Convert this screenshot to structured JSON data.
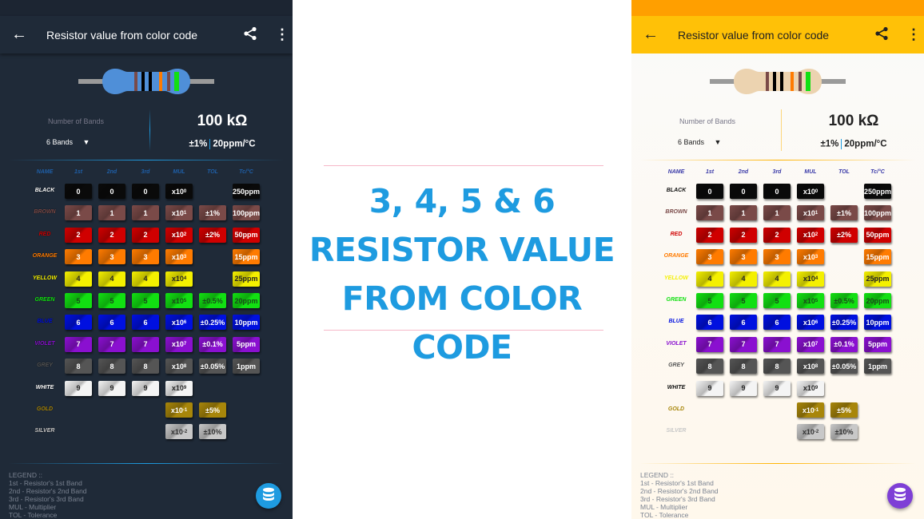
{
  "app": {
    "title": "Resistor value from color code",
    "bands_label": "Number of Bands",
    "bands_value": "6 Bands",
    "resistance": "100 kΩ",
    "tolerance": "±1%",
    "tempco": "20ppm/°C",
    "icons": {
      "back": "arrow-left-icon",
      "share": "share-icon",
      "more": "more-vert-icon",
      "fab": "database-icon"
    }
  },
  "headers": [
    "NAME",
    "1st",
    "2nd",
    "3rd",
    "MUL",
    "TOL",
    "Tc/°C"
  ],
  "rows": [
    {
      "name": "BLACK",
      "color": "#0a0a0a",
      "fg": "#fff",
      "d": "0",
      "mul": [
        "x10",
        "0"
      ],
      "tol": "",
      "tc": "250ppm"
    },
    {
      "name": "BROWN",
      "color": "#7a4a48",
      "fg": "#fff",
      "d": "1",
      "mul": [
        "x10",
        "1"
      ],
      "tol": "±1%",
      "tc": "100ppm"
    },
    {
      "name": "RED",
      "color": "#d00000",
      "fg": "#fff",
      "d": "2",
      "mul": [
        "x10",
        "2"
      ],
      "tol": "±2%",
      "tc": "50ppm"
    },
    {
      "name": "ORANGE",
      "color": "#ff7b00",
      "fg": "#fff",
      "d": "3",
      "mul": [
        "x10",
        "3"
      ],
      "tol": "",
      "tc": "15ppm"
    },
    {
      "name": "YELLOW",
      "color": "#f4f000",
      "fg": "#222",
      "d": "4",
      "mul": [
        "x10",
        "4"
      ],
      "tol": "",
      "tc": "25ppm"
    },
    {
      "name": "GREEN",
      "color": "#12e012",
      "fg": "#1a4a1a",
      "d": "5",
      "mul": [
        "x10",
        "5"
      ],
      "tol": "±0.5%",
      "tc": "20ppm"
    },
    {
      "name": "BLUE",
      "color": "#0010e0",
      "fg": "#fff",
      "d": "6",
      "mul": [
        "x10",
        "6"
      ],
      "tol": "±0.25%",
      "tc": "10ppm"
    },
    {
      "name": "VIOLET",
      "color": "#8a10d0",
      "fg": "#fff",
      "d": "7",
      "mul": [
        "x10",
        "7"
      ],
      "tol": "±0.1%",
      "tc": "5ppm"
    },
    {
      "name": "GREY",
      "color": "#555",
      "fg": "#fff",
      "d": "8",
      "mul": [
        "x10",
        "8"
      ],
      "tol": "±0.05%",
      "tc": "1ppm"
    },
    {
      "name": "WHITE",
      "color": "#f4f4f4",
      "fg": "#222",
      "d": "9",
      "mul": [
        "x10",
        "9"
      ],
      "tol": "",
      "tc": ""
    },
    {
      "name": "GOLD",
      "color": "#a8860a",
      "fg": "#fff",
      "d": "",
      "mul": [
        "x10",
        "-1"
      ],
      "tol": "±5%",
      "tc": ""
    },
    {
      "name": "SILVER",
      "color": "#c8c8c8",
      "fg": "#333",
      "d": "",
      "mul": [
        "x10",
        "-2"
      ],
      "tol": "±10%",
      "tc": ""
    }
  ],
  "legend": [
    "LEGEND ::",
    "1st - Resistor's 1st Band",
    "2nd - Resistor's 2nd Band",
    "3rd - Resistor's 3rd Band",
    "MUL - Multiplier",
    "TOL - Tolerance"
  ],
  "promo": {
    "line1": "3, 4, 5 & 6",
    "line2": "RESISTOR VALUE",
    "line3": "FROM COLOR CODE",
    "color": "#1e9be0"
  },
  "bands": [
    "#7a4a48",
    "#000",
    "#000",
    "#ff7b00",
    "#7a4a48",
    "#12e012"
  ],
  "themes": {
    "dark": {
      "body": "#4f8fd8",
      "bg": "#1f2a38"
    },
    "light": {
      "body": "#ecd3b0",
      "toolbar": "#ffc107",
      "status": "#ff9f00"
    }
  }
}
